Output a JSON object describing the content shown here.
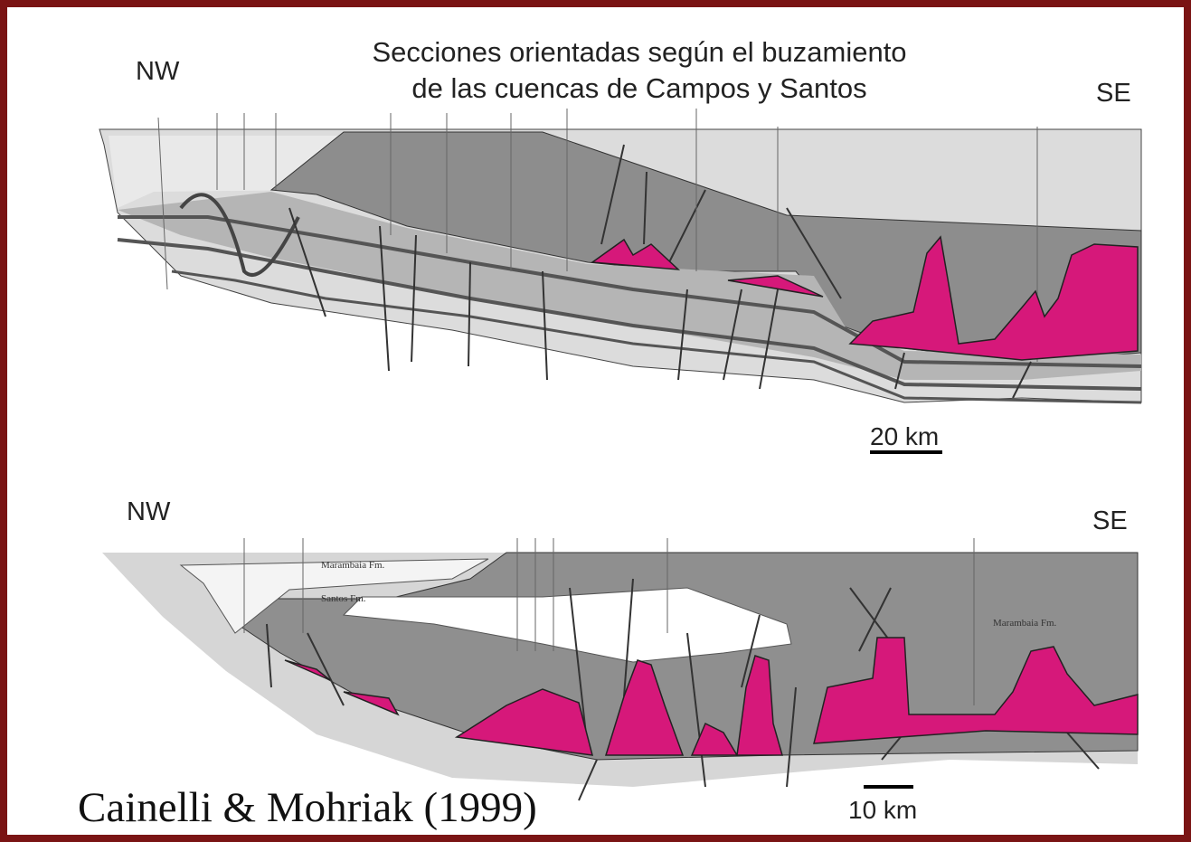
{
  "title": {
    "line1": "Secciones orientadas según el buzamiento",
    "line2": "de las cuencas de Campos y Santos"
  },
  "sections": [
    {
      "left": "NW",
      "right": "SE",
      "scale": "20 km"
    },
    {
      "left": "NW",
      "right": "SE",
      "scale": "10 km",
      "labels": [
        "Marambaia Fm.",
        "Santos Fm.",
        "Marambaia Fm."
      ]
    }
  ],
  "credit": "Cainelli & Mohriak (1999)"
}
